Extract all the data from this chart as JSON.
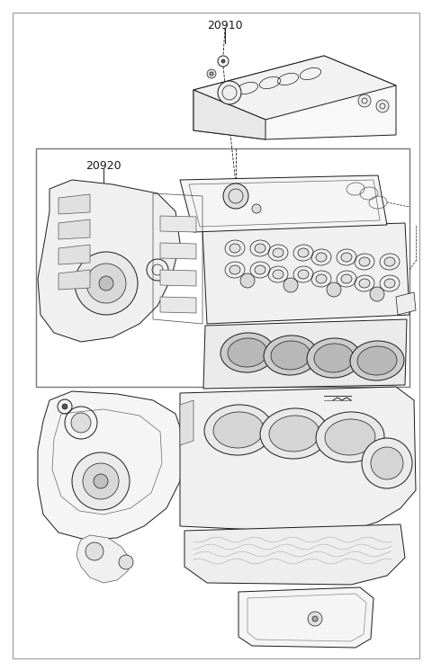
{
  "background_color": "#ffffff",
  "line_color": "#1a1a1a",
  "label_20910": "20910",
  "label_20920": "20920",
  "fig_width": 4.8,
  "fig_height": 7.46,
  "dpi": 100,
  "label_fontsize": 9
}
